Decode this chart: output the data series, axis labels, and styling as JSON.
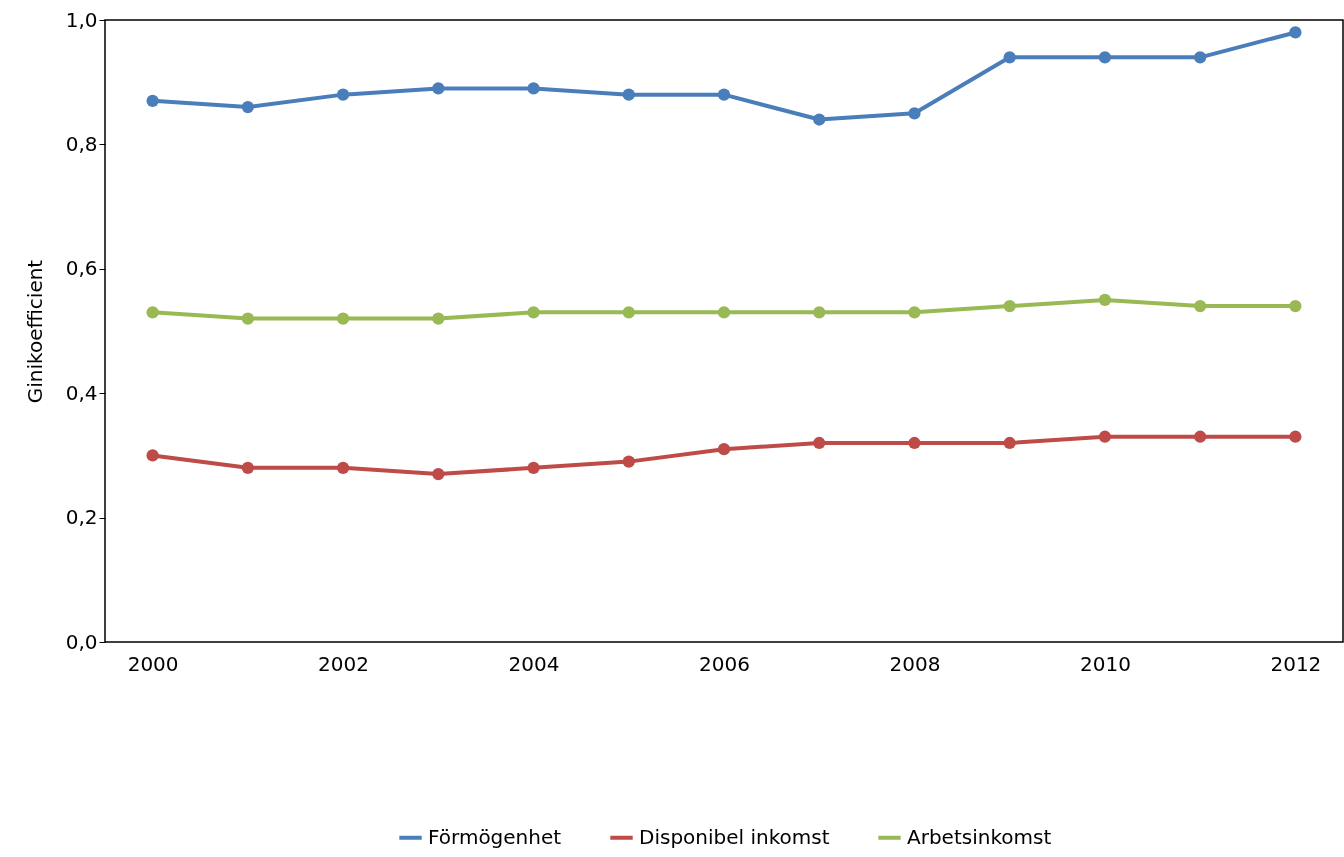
{
  "chart_data": {
    "type": "line",
    "ylabel": "Ginikoefficient",
    "x": [
      2000,
      2001,
      2002,
      2003,
      2004,
      2005,
      2006,
      2007,
      2008,
      2009,
      2010,
      2011,
      2012
    ],
    "xlim": [
      1999.5,
      2012.5
    ],
    "xticks": [
      2000,
      2002,
      2004,
      2006,
      2008,
      2010,
      2012
    ],
    "ylim": [
      0,
      1
    ],
    "yticks": [
      {
        "value": 0,
        "label": "0,0"
      },
      {
        "value": 0.2,
        "label": "0,2"
      },
      {
        "value": 0.4,
        "label": "0,4"
      },
      {
        "value": 0.6,
        "label": "0,6"
      },
      {
        "value": 0.8,
        "label": "0,8"
      },
      {
        "value": 1,
        "label": "1,0"
      }
    ],
    "series": [
      {
        "name": "Förmögenhet",
        "color": "#4a7ebb",
        "values": [
          0.87,
          0.86,
          0.88,
          0.89,
          0.89,
          0.88,
          0.88,
          0.84,
          0.85,
          0.94,
          0.94,
          0.94,
          0.98
        ]
      },
      {
        "name": "Disponibel inkomst",
        "color": "#be4b48",
        "values": [
          0.3,
          0.28,
          0.28,
          0.27,
          0.28,
          0.29,
          0.31,
          0.32,
          0.32,
          0.32,
          0.33,
          0.33,
          0.33
        ]
      },
      {
        "name": "Arbetsinkomst",
        "color": "#98b954",
        "values": [
          0.53,
          0.52,
          0.52,
          0.52,
          0.53,
          0.53,
          0.53,
          0.53,
          0.53,
          0.54,
          0.55,
          0.54,
          0.54
        ]
      }
    ],
    "marker": "circle",
    "legend": "bottom"
  }
}
